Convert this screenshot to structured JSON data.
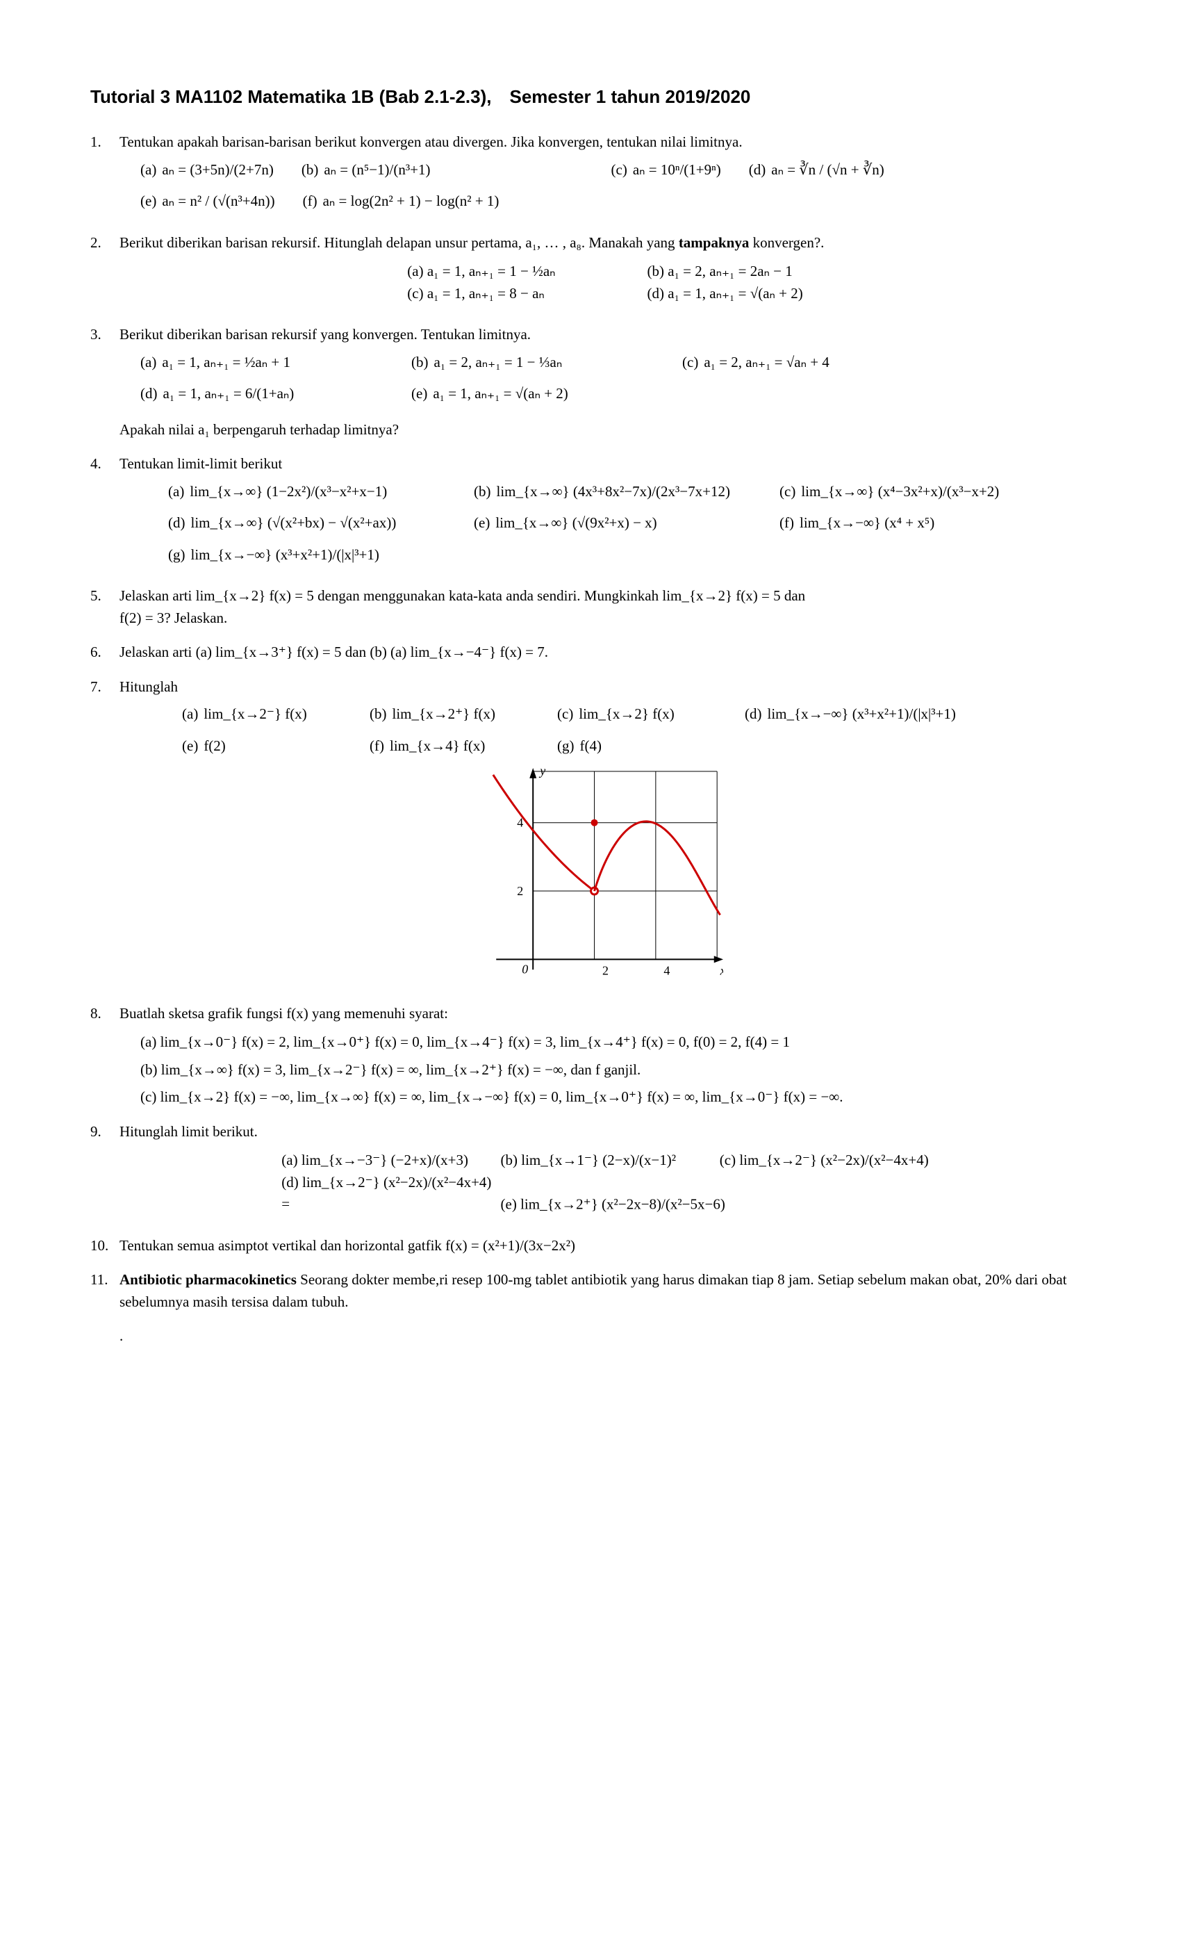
{
  "title": "Tutorial 3 MA1102 Matematika 1B (Bab 2.1-2.3), Semester 1 tahun 2019/2020",
  "q1": {
    "text": "Tentukan apakah barisan-barisan berikut konvergen atau divergen. Jika konvergen, tentukan nilai limitnya.",
    "a": "aₙ = (3+5n)/(2+7n)",
    "b": "aₙ = (n⁵−1)/(n³+1)",
    "c": "aₙ = 10ⁿ/(1+9ⁿ)",
    "d": "aₙ = ∛n / (√n + ∛n)",
    "e": "aₙ = n² / (√(n³+4n))",
    "f": "aₙ = log(2n² + 1) − log(n² + 1)"
  },
  "q2": {
    "text": "Berikut diberikan barisan rekursif.  Hitunglah delapan unsur pertama, a₁, … , a₈. Manakah yang ",
    "bold": "tampaknya",
    "text2": " konvergen?.",
    "a": "a₁ = 1, aₙ₊₁ = 1 − ½aₙ",
    "b": "a₁ = 2, aₙ₊₁ = 2aₙ − 1",
    "c": "a₁ = 1, aₙ₊₁ = 8 − aₙ",
    "d": "a₁ = 1, aₙ₊₁ = √(aₙ + 2)"
  },
  "q3": {
    "text": "Berikut diberikan barisan rekursif yang konvergen. Tentukan limitnya.",
    "a": "a₁ = 1, aₙ₊₁ = ½aₙ + 1",
    "b": "a₁ = 2, aₙ₊₁ = 1 − ⅓aₙ",
    "c": "a₁ = 2, aₙ₊₁ = √aₙ + 4",
    "d": "a₁ = 1, aₙ₊₁ = 6/(1+aₙ)",
    "e": "a₁ = 1, aₙ₊₁ = √(aₙ + 2)",
    "after": "Apakah nilai a₁ berpengaruh terhadap limitnya?"
  },
  "q4": {
    "text": "Tentukan limit-limit berikut",
    "a": "lim_{x→∞} (1−2x²)/(x³−x²+x−1)",
    "b": "lim_{x→∞} (4x³+8x²−7x)/(2x³−7x+12)",
    "c": "lim_{x→∞} (x⁴−3x²+x)/(x³−x+2)",
    "d": "lim_{x→∞} (√(x²+bx) − √(x²+ax))",
    "e": "lim_{x→∞} (√(9x²+x) − x)",
    "f": "lim_{x→−∞} (x⁴ + x⁵)",
    "g": "lim_{x→−∞} (x³+x²+1)/(|x|³+1)"
  },
  "q5": {
    "text1": "Jelaskan arti lim_{x→2} f(x) = 5 dengan menggunakan kata-kata anda sendiri. Mungkinkah lim_{x→2} f(x) = 5 dan",
    "text2": "f(2) = 3? Jelaskan."
  },
  "q6": "Jelaskan arti (a) lim_{x→3⁺} f(x) = 5 dan (b) (a) lim_{x→−4⁻} f(x) = 7.",
  "q7": {
    "text": "Hitunglah",
    "a": "lim_{x→2⁻} f(x)",
    "b": "lim_{x→2⁺} f(x)",
    "c": "lim_{x→2} f(x)",
    "d": "lim_{x→−∞} (x³+x²+1)/(|x|³+1)",
    "e": "f(2)",
    "f": "lim_{x→4} f(x)",
    "g": "f(4)",
    "graph": {
      "curve_color": "#cc0000",
      "axis_color": "#000000",
      "xmin": -1.5,
      "xmax": 6.2,
      "ymin": -0.5,
      "ymax": 5.6,
      "xticks": [
        2,
        4
      ],
      "yticks": [
        2,
        4
      ],
      "xlabel": "x",
      "ylabel": "y"
    }
  },
  "q8": {
    "text": "Buatlah sketsa grafik fungsi f(x) yang memenuhi syarat:",
    "a": "lim_{x→0⁻} f(x) = 2,  lim_{x→0⁺} f(x) = 0,  lim_{x→4⁻} f(x) = 3,  lim_{x→4⁺} f(x) = 0, f(0) = 2, f(4) = 1",
    "b": "lim_{x→∞} f(x) = 3,  lim_{x→2⁻} f(x) = ∞,  lim_{x→2⁺} f(x) = −∞,  dan f ganjil.",
    "c": "lim_{x→2} f(x) = −∞,  lim_{x→∞} f(x) = ∞,  lim_{x→−∞} f(x) = 0,  lim_{x→0⁺} f(x) = ∞,  lim_{x→0⁻} f(x) = −∞."
  },
  "q9": {
    "text": "Hitunglah limit berikut.",
    "a": "lim_{x→−3⁻} (−2+x)/(x+3)",
    "b": "lim_{x→1⁻} (2−x)/(x−1)²",
    "c": "lim_{x→2⁻} (x²−2x)/(x²−4x+4)",
    "d": "lim_{x→2⁻} (x²−2x)/(x²−4x+4) =",
    "e": "lim_{x→2⁺} (x²−2x−8)/(x²−5x−6)"
  },
  "q10": "Tentukan semua asimptot vertikal dan horizontal gatfik f(x) = (x²+1)/(3x−2x²)",
  "q11": {
    "bold": "Antibiotic pharmacokinetics",
    "text": " Seorang dokter membe,ri resep 100-mg tablet antibiotik yang harus dimakan tiap 8 jam.  Setiap sebelum makan obat, 20% dari obat sebelumnya masih tersisa dalam tubuh."
  }
}
